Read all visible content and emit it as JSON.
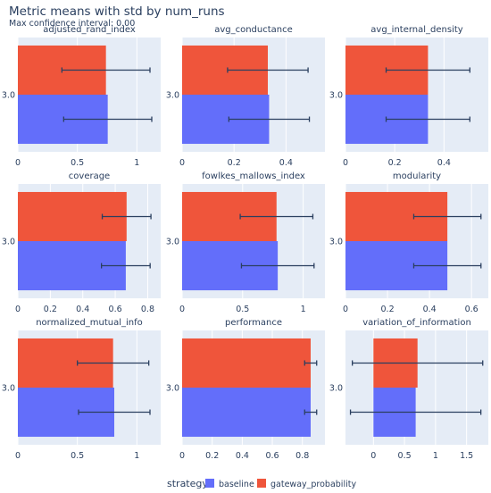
{
  "header": {
    "title": "Metric means with std by num_runs",
    "subtitle": "Max confidence interval: 0.00"
  },
  "colors": {
    "baseline": "#636efa",
    "gateway_probability": "#ef553b",
    "plot_bg": "#e5ecf6",
    "grid": "#ffffff",
    "error_bar": "#2a3f5f"
  },
  "legend": {
    "title": "strategy",
    "placement": "bottom-center",
    "items": [
      {
        "label": "baseline",
        "color": "#636efa"
      },
      {
        "label": "gateway_probability",
        "color": "#ef553b"
      }
    ]
  },
  "chart_data": [
    {
      "type": "bar",
      "orientation": "horizontal",
      "title": "adjusted_rand_index",
      "categories": [
        "3.0"
      ],
      "xlim": [
        0,
        1.2
      ],
      "xticks": [
        0,
        0.5,
        1
      ],
      "xtick_labels": [
        "0",
        "0.5",
        "1"
      ],
      "series": [
        {
          "name": "baseline",
          "values": [
            0.755
          ],
          "err": [
            0.37
          ]
        },
        {
          "name": "gateway_probability",
          "values": [
            0.74
          ],
          "err": [
            0.37
          ]
        }
      ]
    },
    {
      "type": "bar",
      "orientation": "horizontal",
      "title": "avg_conductance",
      "categories": [
        "3.0"
      ],
      "xlim": [
        0,
        0.55
      ],
      "xticks": [
        0,
        0.2,
        0.4
      ],
      "xtick_labels": [
        "0",
        "0.2",
        "0.4"
      ],
      "series": [
        {
          "name": "baseline",
          "values": [
            0.335
          ],
          "err": [
            0.155
          ]
        },
        {
          "name": "gateway_probability",
          "values": [
            0.33
          ],
          "err": [
            0.155
          ]
        }
      ]
    },
    {
      "type": "bar",
      "orientation": "horizontal",
      "title": "avg_internal_density",
      "categories": [
        "3.0"
      ],
      "xlim": [
        0,
        0.58
      ],
      "xticks": [
        0,
        0.2,
        0.4
      ],
      "xtick_labels": [
        "0",
        "0.2",
        "0.4"
      ],
      "series": [
        {
          "name": "baseline",
          "values": [
            0.335
          ],
          "err": [
            0.17
          ]
        },
        {
          "name": "gateway_probability",
          "values": [
            0.335
          ],
          "err": [
            0.17
          ]
        }
      ]
    },
    {
      "type": "bar",
      "orientation": "horizontal",
      "title": "coverage",
      "categories": [
        "3.0"
      ],
      "xlim": [
        0,
        0.88
      ],
      "xticks": [
        0,
        0.2,
        0.4,
        0.6,
        0.8
      ],
      "xtick_labels": [
        "0",
        "0.2",
        "0.4",
        "0.6",
        "0.8"
      ],
      "series": [
        {
          "name": "baseline",
          "values": [
            0.665
          ],
          "err": [
            0.15
          ]
        },
        {
          "name": "gateway_probability",
          "values": [
            0.67
          ],
          "err": [
            0.15
          ]
        }
      ]
    },
    {
      "type": "bar",
      "orientation": "horizontal",
      "title": "fowlkes_mallows_index",
      "categories": [
        "3.0"
      ],
      "xlim": [
        0,
        1.18
      ],
      "xticks": [
        0,
        0.5,
        1
      ],
      "xtick_labels": [
        "0",
        "0.5",
        "1"
      ],
      "series": [
        {
          "name": "baseline",
          "values": [
            0.79
          ],
          "err": [
            0.3
          ]
        },
        {
          "name": "gateway_probability",
          "values": [
            0.78
          ],
          "err": [
            0.3
          ]
        }
      ]
    },
    {
      "type": "bar",
      "orientation": "horizontal",
      "title": "modularity",
      "categories": [
        "3.0"
      ],
      "xlim": [
        0,
        0.68
      ],
      "xticks": [
        0,
        0.2,
        0.4,
        0.6
      ],
      "xtick_labels": [
        "0",
        "0.2",
        "0.4",
        "0.6"
      ],
      "series": [
        {
          "name": "baseline",
          "values": [
            0.485
          ],
          "err": [
            0.16
          ]
        },
        {
          "name": "gateway_probability",
          "values": [
            0.485
          ],
          "err": [
            0.16
          ]
        }
      ]
    },
    {
      "type": "bar",
      "orientation": "horizontal",
      "title": "normalized_mutual_info",
      "categories": [
        "3.0"
      ],
      "xlim": [
        0,
        1.2
      ],
      "xticks": [
        0,
        0.5,
        1
      ],
      "xtick_labels": [
        "0",
        "0.5",
        "1"
      ],
      "series": [
        {
          "name": "baseline",
          "values": [
            0.81
          ],
          "err": [
            0.3
          ]
        },
        {
          "name": "gateway_probability",
          "values": [
            0.8
          ],
          "err": [
            0.3
          ]
        }
      ]
    },
    {
      "type": "bar",
      "orientation": "horizontal",
      "title": "performance",
      "categories": [
        "3.0"
      ],
      "xlim": [
        0,
        0.95
      ],
      "xticks": [
        0,
        0.2,
        0.4,
        0.6,
        0.8
      ],
      "xtick_labels": [
        "0",
        "0.2",
        "0.4",
        "0.6",
        "0.8"
      ],
      "series": [
        {
          "name": "baseline",
          "values": [
            0.855
          ],
          "err": [
            0.04
          ]
        },
        {
          "name": "gateway_probability",
          "values": [
            0.855
          ],
          "err": [
            0.04
          ]
        }
      ]
    },
    {
      "type": "bar",
      "orientation": "horizontal",
      "title": "variation_of_information",
      "categories": [
        "3.0"
      ],
      "xlim": [
        -0.45,
        1.85
      ],
      "xticks": [
        0,
        0.5,
        1,
        1.5
      ],
      "xtick_labels": [
        "0",
        "0.5",
        "1",
        "1.5"
      ],
      "series": [
        {
          "name": "baseline",
          "values": [
            0.68
          ],
          "err": [
            1.05
          ]
        },
        {
          "name": "gateway_probability",
          "values": [
            0.71
          ],
          "err": [
            1.05
          ]
        }
      ]
    }
  ]
}
